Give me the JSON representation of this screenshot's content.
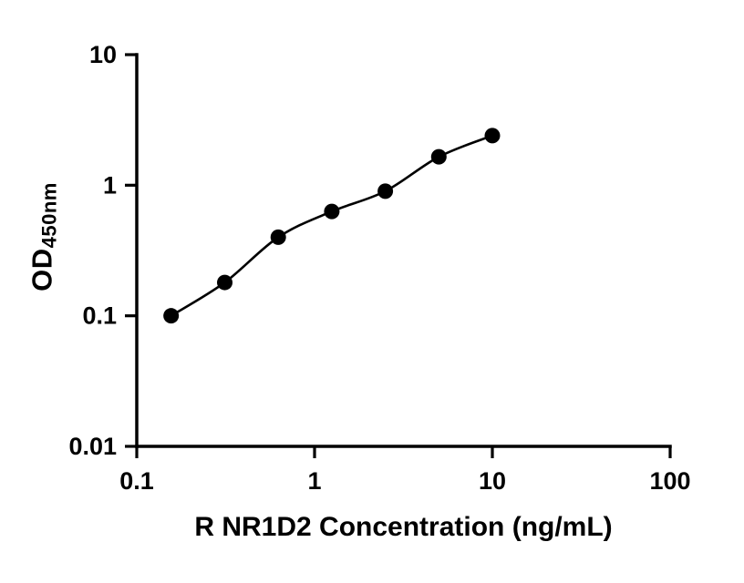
{
  "chart_data": {
    "type": "scatter",
    "title": "",
    "xlabel": "R NR1D2 Concentration (ng/mL)",
    "ylabel_main": "OD",
    "ylabel_sub": "450nm",
    "x": [
      0.156,
      0.3125,
      0.625,
      1.25,
      2.5,
      5,
      10
    ],
    "y": [
      0.1,
      0.18,
      0.4,
      0.63,
      0.9,
      1.65,
      2.4
    ],
    "xscale": "log",
    "yscale": "log",
    "xlim": [
      0.1,
      100
    ],
    "ylim": [
      0.01,
      10
    ],
    "x_ticks": [
      "0.1",
      "1",
      "10",
      "100"
    ],
    "y_ticks": [
      "0.01",
      "0.1",
      "1",
      "10"
    ],
    "grid": false,
    "legend": "none",
    "axis_color": "#000000",
    "marker_color": "#000000",
    "line_color": "#000000",
    "fit_line": true
  }
}
